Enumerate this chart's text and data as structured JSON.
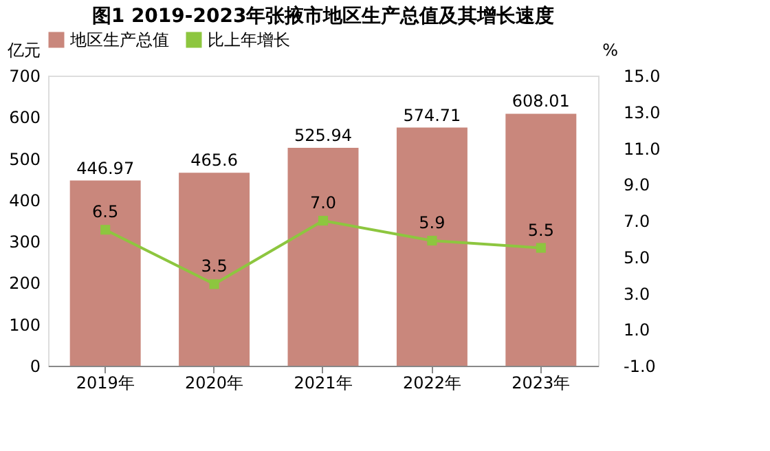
{
  "chart_data": {
    "type": "bar",
    "title": "图1 2019-2023年张掖市地区生产总值及其增长速度",
    "categories": [
      "2019年",
      "2020年",
      "2021年",
      "2022年",
      "2023年"
    ],
    "series": [
      {
        "name": "地区生产总值",
        "color": "#c9877c",
        "values": [
          446.97,
          465.6,
          525.94,
          574.71,
          608.01
        ],
        "value_labels": [
          "446.97",
          "465.6",
          "525.94",
          "574.71",
          "608.01"
        ]
      },
      {
        "name": "比上年增长",
        "type": "line",
        "axis": "y2",
        "color": "#8dc63f",
        "marker": "square",
        "values": [
          6.5,
          3.5,
          7.0,
          5.9,
          5.5
        ],
        "value_labels": [
          "6.5",
          "3.5",
          "7.0",
          "5.9",
          "5.5"
        ]
      }
    ],
    "ylabel": "亿元",
    "y2label": "%",
    "ylim": [
      0,
      700
    ],
    "yticks": [
      0,
      100,
      200,
      300,
      400,
      500,
      600,
      700
    ],
    "y2lim": [
      -1.0,
      15.0
    ],
    "y2ticks": [
      {
        "value": -1,
        "label": "-1.0"
      },
      {
        "value": 1,
        "label": "1.0"
      },
      {
        "value": 3,
        "label": "3.0"
      },
      {
        "value": 5,
        "label": "5.0"
      },
      {
        "value": 7,
        "label": "7.0"
      },
      {
        "value": 9,
        "label": "9.0"
      },
      {
        "value": 11,
        "label": "11.0"
      },
      {
        "value": 13,
        "label": "13.0"
      },
      {
        "value": 15,
        "label": "15.0"
      }
    ],
    "legend": "top",
    "grid": false
  }
}
